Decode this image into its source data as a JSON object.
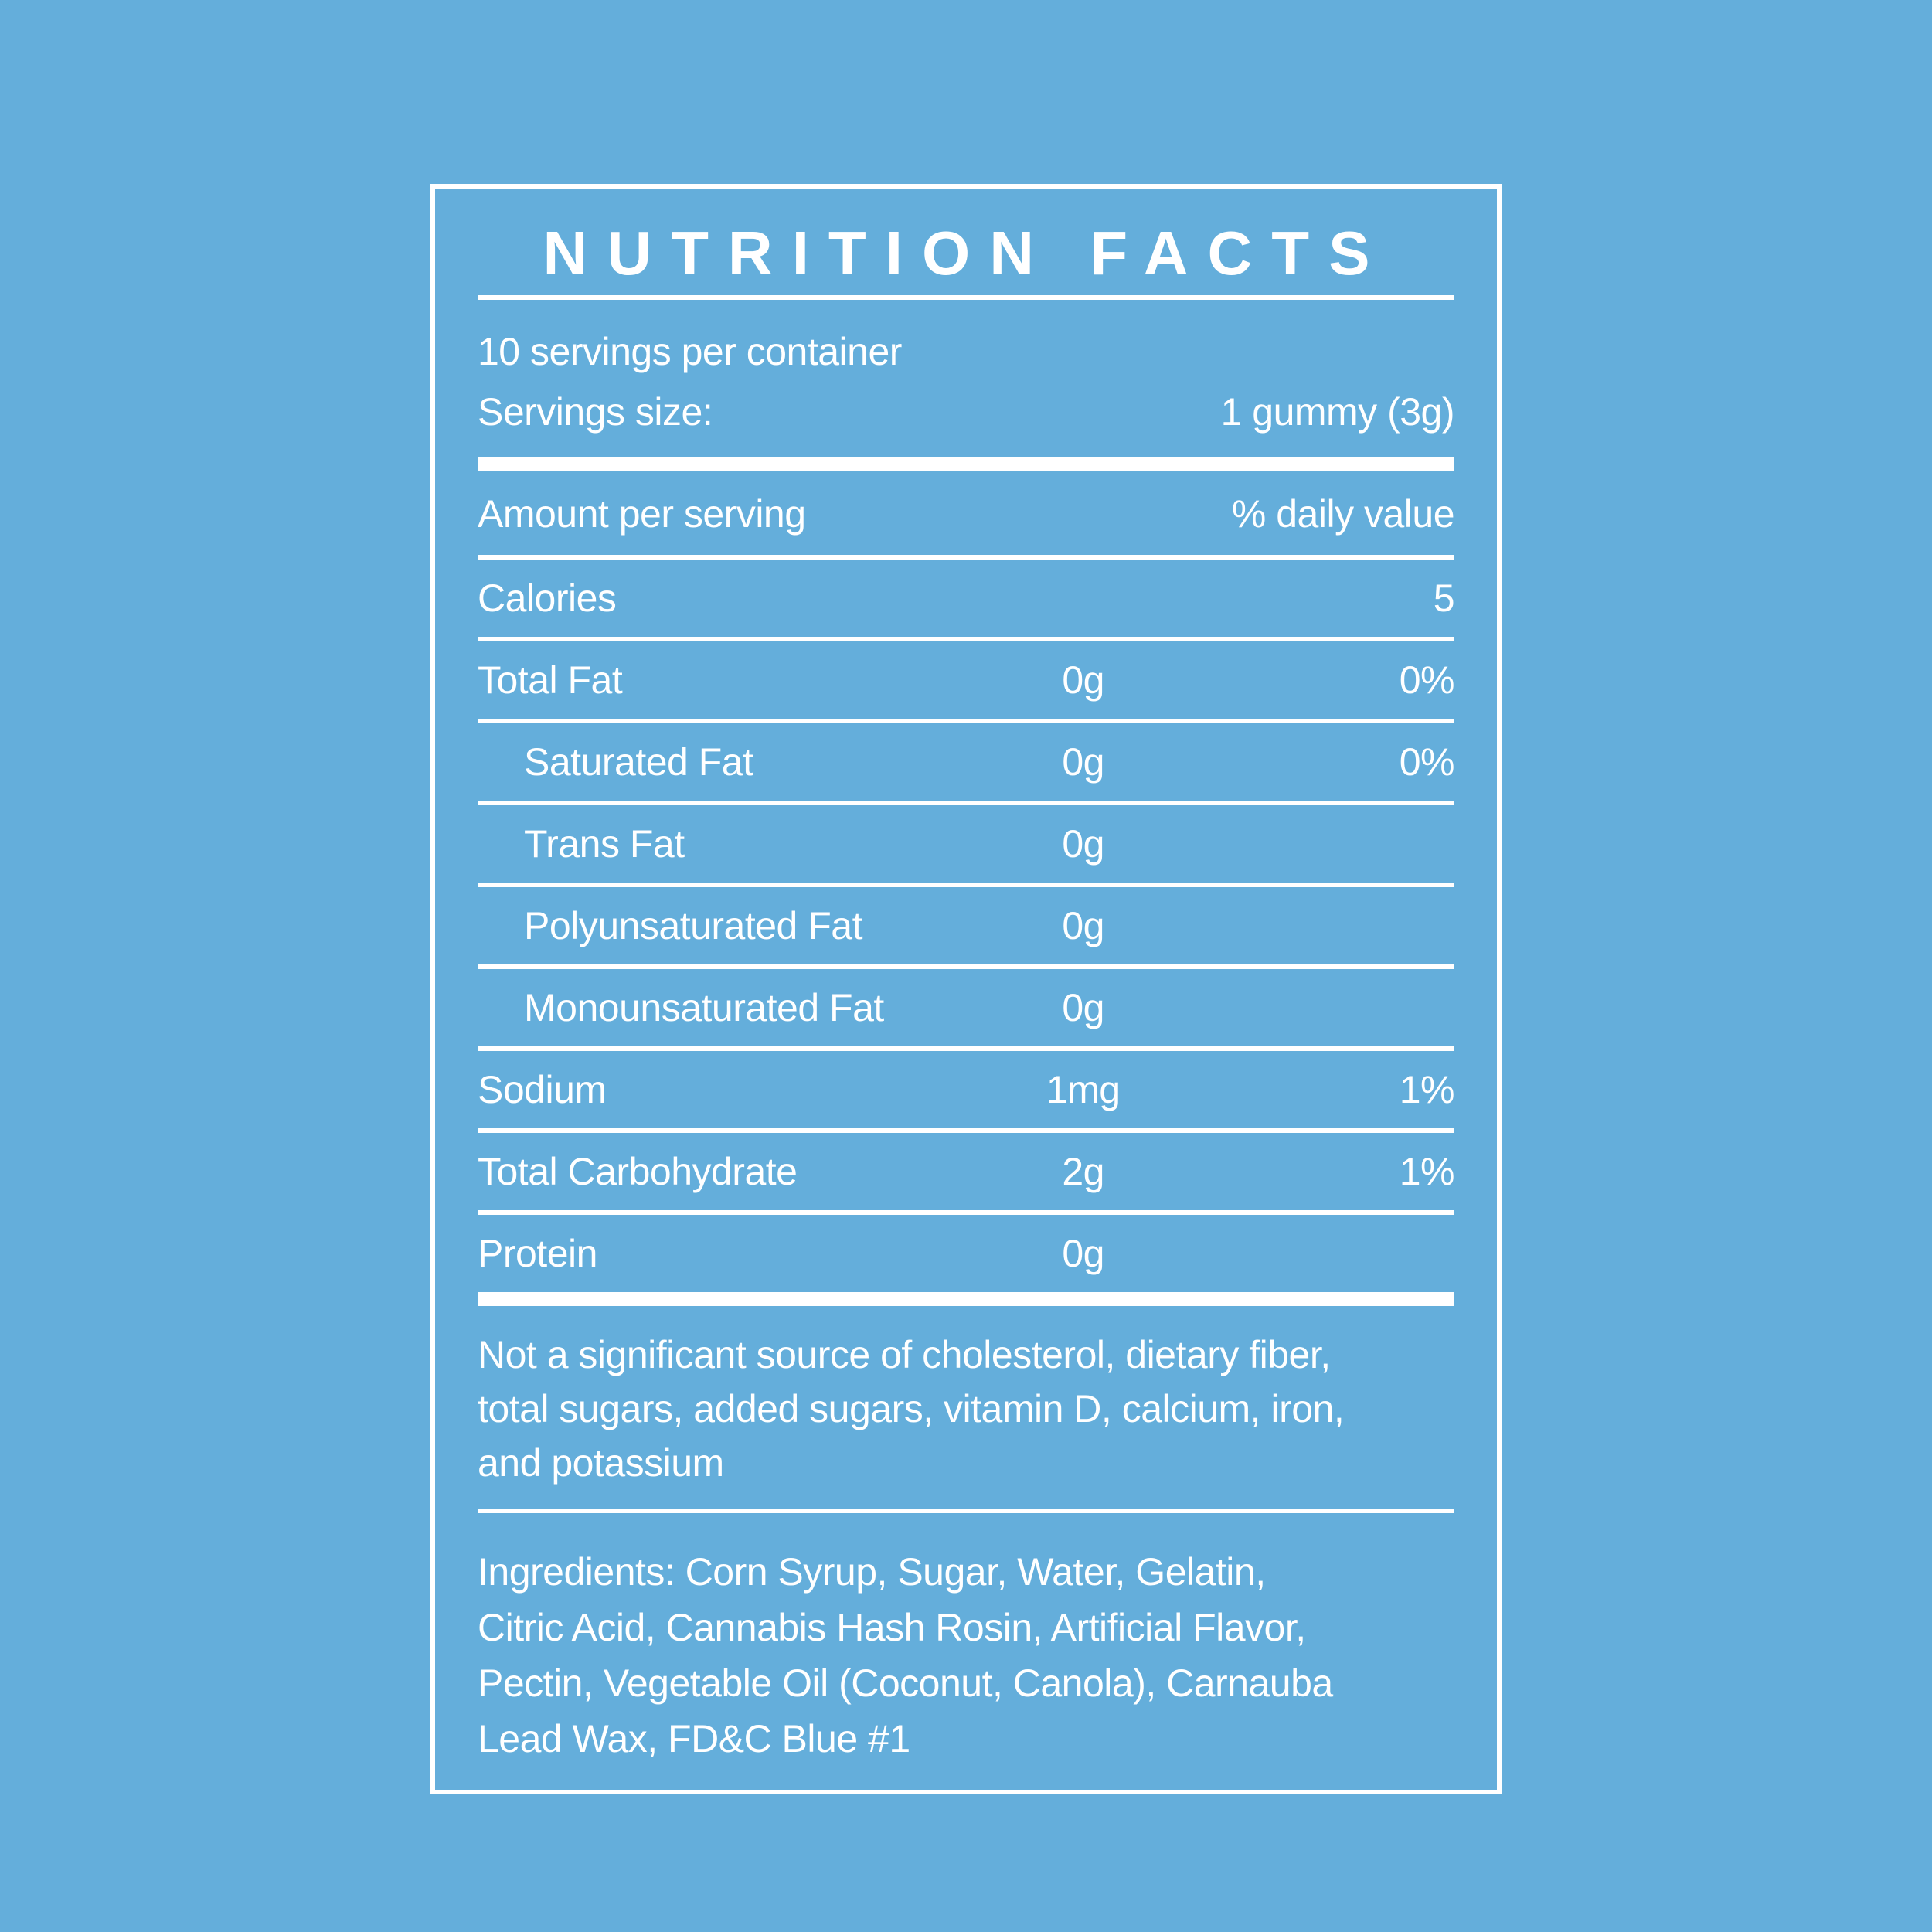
{
  "colors": {
    "background": "#64AEDB",
    "foreground": "#FFFFFF"
  },
  "label": {
    "title": "NUTRITION FACTS",
    "servings_per_container": "10 servings per container",
    "serving_size": {
      "label": "Servings size:",
      "value": "1 gummy (3g)"
    },
    "column_headers": {
      "amount": "Amount per serving",
      "daily_value": "% daily value"
    },
    "calories": {
      "label": "Calories",
      "value": "5"
    },
    "rows": [
      {
        "label": "Total Fat",
        "amount": "0g",
        "dv": "0%"
      },
      {
        "label": "Saturated Fat",
        "amount": "0g",
        "dv": "0%"
      },
      {
        "label": "Trans Fat",
        "amount": "0g",
        "dv": ""
      },
      {
        "label": "Polyunsaturated Fat",
        "amount": "0g",
        "dv": ""
      },
      {
        "label": "Monounsaturated Fat",
        "amount": "0g",
        "dv": ""
      },
      {
        "label": "Sodium",
        "amount": "1mg",
        "dv": "1%"
      },
      {
        "label": "Total Carbohydrate",
        "amount": "2g",
        "dv": "1%"
      },
      {
        "label": "Protein",
        "amount": "0g",
        "dv": ""
      }
    ],
    "note": "Not a significant source of cholesterol, dietary fiber,\ntotal sugars, added sugars, vitamin D, calcium, iron,\nand potassium",
    "ingredients": "Ingredients: Corn Syrup, Sugar, Water, Gelatin,\nCitric Acid, Cannabis Hash Rosin, Artificial Flavor,\nPectin, Vegetable Oil (Coconut, Canola), Carnauba\nLead Wax, FD&C Blue #1"
  }
}
